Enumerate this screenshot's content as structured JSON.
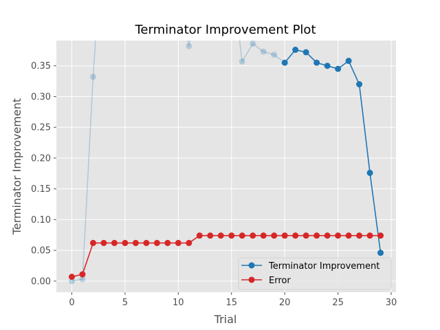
{
  "chart_data": {
    "type": "line",
    "title": "Terminator Improvement Plot",
    "xlabel": "Trial",
    "ylabel": "Terminator Improvement",
    "xlim": [
      -1.45,
      30.45
    ],
    "ylim": [
      -0.018,
      0.391
    ],
    "x_ticks": [
      0,
      5,
      10,
      15,
      20,
      25,
      30
    ],
    "y_ticks": [
      0.0,
      0.05,
      0.1,
      0.15,
      0.2,
      0.25,
      0.3,
      0.35
    ],
    "y_tick_labels": [
      "0.00",
      "0.05",
      "0.10",
      "0.15",
      "0.20",
      "0.25",
      "0.30",
      "0.35"
    ],
    "grid": true,
    "legend_position": "lower-right",
    "background": "#e5e5e5",
    "faded_series": {
      "color": "#1f77b4",
      "points": [
        {
          "x": 0,
          "y": 0.0
        },
        {
          "x": 1,
          "y": 0.003
        },
        {
          "x": 2,
          "y": 0.332
        },
        {
          "x": 3,
          "y": 0.6
        },
        {
          "x": 10,
          "y": 0.5
        },
        {
          "x": 11,
          "y": 0.382
        },
        {
          "x": 12,
          "y": 0.5
        },
        {
          "x": 15,
          "y": 0.5
        },
        {
          "x": 16,
          "y": 0.357
        },
        {
          "x": 17,
          "y": 0.386
        },
        {
          "x": 18,
          "y": 0.373
        },
        {
          "x": 19,
          "y": 0.368
        },
        {
          "x": 20,
          "y": 0.355
        }
      ],
      "marked_x": [
        0,
        1,
        2,
        11,
        16,
        17,
        18,
        19
      ]
    },
    "series": [
      {
        "name": "Terminator Improvement",
        "color": "#1f77b4",
        "x": [
          20,
          21,
          22,
          23,
          24,
          25,
          26,
          27,
          28,
          29
        ],
        "values": [
          0.355,
          0.376,
          0.372,
          0.355,
          0.35,
          0.345,
          0.358,
          0.32,
          0.176,
          0.046
        ]
      },
      {
        "name": "Error",
        "color": "#d62728",
        "x": [
          0,
          1,
          2,
          3,
          4,
          5,
          6,
          7,
          8,
          9,
          10,
          11,
          12,
          13,
          14,
          15,
          16,
          17,
          18,
          19,
          20,
          21,
          22,
          23,
          24,
          25,
          26,
          27,
          28,
          29
        ],
        "values": [
          0.007,
          0.011,
          0.062,
          0.062,
          0.062,
          0.062,
          0.062,
          0.062,
          0.062,
          0.062,
          0.062,
          0.062,
          0.074,
          0.074,
          0.074,
          0.074,
          0.074,
          0.074,
          0.074,
          0.074,
          0.074,
          0.074,
          0.074,
          0.074,
          0.074,
          0.074,
          0.074,
          0.074,
          0.074,
          0.074
        ]
      }
    ]
  }
}
